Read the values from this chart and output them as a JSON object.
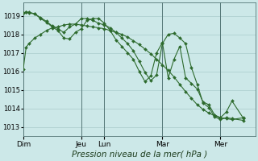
{
  "background_color": "#cce8e8",
  "grid_color": "#aacccc",
  "line_color": "#2d6a2d",
  "xlabel": "Pression niveau de la mer( hPa )",
  "xlabel_fontsize": 7.5,
  "ylim": [
    1012.5,
    1019.7
  ],
  "yticks": [
    1013,
    1014,
    1015,
    1016,
    1017,
    1018,
    1019
  ],
  "day_labels": [
    "Dim",
    "Jeu",
    "Lun",
    "Mar",
    "Mer"
  ],
  "day_positions": [
    0,
    10,
    14,
    24,
    34
  ],
  "xlim": [
    0,
    40
  ],
  "series1_x": [
    0,
    0.5,
    1,
    2,
    3,
    4,
    5,
    6,
    7,
    8,
    9,
    10,
    11,
    12,
    13,
    14,
    15,
    16,
    17,
    18,
    19,
    20,
    21,
    22,
    23,
    24,
    25,
    26,
    27,
    28,
    29,
    30,
    31,
    32,
    33,
    34,
    35,
    36,
    38
  ],
  "series1_y": [
    1016.1,
    1017.3,
    1017.5,
    1017.8,
    1018.0,
    1018.2,
    1018.35,
    1018.4,
    1018.5,
    1018.55,
    1018.55,
    1018.5,
    1018.45,
    1018.4,
    1018.35,
    1018.3,
    1018.2,
    1018.1,
    1018.0,
    1017.85,
    1017.65,
    1017.45,
    1017.2,
    1016.95,
    1016.65,
    1016.35,
    1016.05,
    1015.7,
    1015.3,
    1014.9,
    1014.55,
    1014.2,
    1013.95,
    1013.75,
    1013.6,
    1013.5,
    1013.45,
    1013.4,
    1013.5
  ],
  "series2_x": [
    0,
    0.5,
    1,
    2,
    3,
    4,
    5,
    6,
    7,
    8,
    9,
    10,
    11,
    12,
    13,
    14,
    15,
    16,
    17,
    18,
    19,
    20,
    21,
    22,
    23,
    24,
    25,
    26,
    27,
    28,
    29,
    30,
    31,
    32,
    33,
    34,
    35,
    36,
    38
  ],
  "series2_y": [
    1019.15,
    1019.2,
    1019.2,
    1019.1,
    1018.9,
    1018.7,
    1018.45,
    1018.3,
    1018.1,
    1018.4,
    1018.55,
    1018.85,
    1018.85,
    1018.75,
    1018.6,
    1018.5,
    1018.35,
    1018.1,
    1017.8,
    1017.5,
    1017.1,
    1016.55,
    1015.95,
    1015.5,
    1015.8,
    1017.5,
    1018.0,
    1018.05,
    1017.8,
    1017.5,
    1016.2,
    1015.3,
    1014.3,
    1014.05,
    1013.55,
    1013.4,
    1013.5,
    1013.45,
    1013.35
  ],
  "series3_x": [
    0,
    0.5,
    1,
    2,
    3,
    4,
    5,
    6,
    7,
    8,
    9,
    10,
    11,
    12,
    13,
    14,
    15,
    16,
    17,
    18,
    19,
    20,
    21,
    22,
    23,
    24,
    25,
    26,
    27,
    28,
    29,
    30,
    31,
    32,
    33,
    34,
    35,
    36,
    38
  ],
  "series3_y": [
    1019.15,
    1019.2,
    1019.15,
    1019.1,
    1018.85,
    1018.65,
    1018.4,
    1018.2,
    1017.8,
    1017.75,
    1018.1,
    1018.3,
    1018.75,
    1018.85,
    1018.85,
    1018.6,
    1018.2,
    1017.7,
    1017.35,
    1017.0,
    1016.65,
    1016.0,
    1015.45,
    1015.75,
    1017.0,
    1017.55,
    1015.65,
    1016.65,
    1017.35,
    1015.65,
    1015.35,
    1015.05,
    1014.35,
    1014.2,
    1013.65,
    1013.5,
    1013.8,
    1014.4,
    1013.45
  ]
}
